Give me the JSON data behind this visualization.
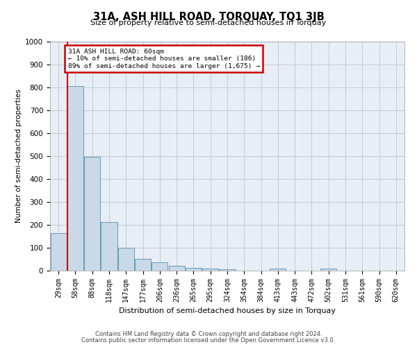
{
  "title": "31A, ASH HILL ROAD, TORQUAY, TQ1 3JB",
  "subtitle": "Size of property relative to semi-detached houses in Torquay",
  "xlabel": "Distribution of semi-detached houses by size in Torquay",
  "ylabel": "Number of semi-detached properties",
  "categories": [
    "29sqm",
    "58sqm",
    "88sqm",
    "118sqm",
    "147sqm",
    "177sqm",
    "206sqm",
    "236sqm",
    "265sqm",
    "295sqm",
    "324sqm",
    "354sqm",
    "384sqm",
    "413sqm",
    "443sqm",
    "472sqm",
    "502sqm",
    "531sqm",
    "561sqm",
    "590sqm",
    "620sqm"
  ],
  "values": [
    165,
    805,
    497,
    213,
    100,
    53,
    35,
    20,
    13,
    10,
    7,
    0,
    0,
    9,
    0,
    0,
    10,
    0,
    0,
    0,
    0
  ],
  "bar_color": "#c9d9e8",
  "bar_edge_color": "#6699bb",
  "annotation_title": "31A ASH HILL ROAD: 60sqm",
  "annotation_line1": "← 10% of semi-detached houses are smaller (186)",
  "annotation_line2": "89% of semi-detached houses are larger (1,675) →",
  "annotation_box_color": "#ffffff",
  "annotation_box_edge": "#cc0000",
  "vline_color": "#cc0000",
  "vline_x_index": 1,
  "ylim": [
    0,
    1000
  ],
  "yticks": [
    0,
    100,
    200,
    300,
    400,
    500,
    600,
    700,
    800,
    900,
    1000
  ],
  "grid_color": "#b0bfcc",
  "background_color": "#e8eef5",
  "footer_line1": "Contains HM Land Registry data © Crown copyright and database right 2024.",
  "footer_line2": "Contains public sector information licensed under the Open Government Licence v3.0."
}
